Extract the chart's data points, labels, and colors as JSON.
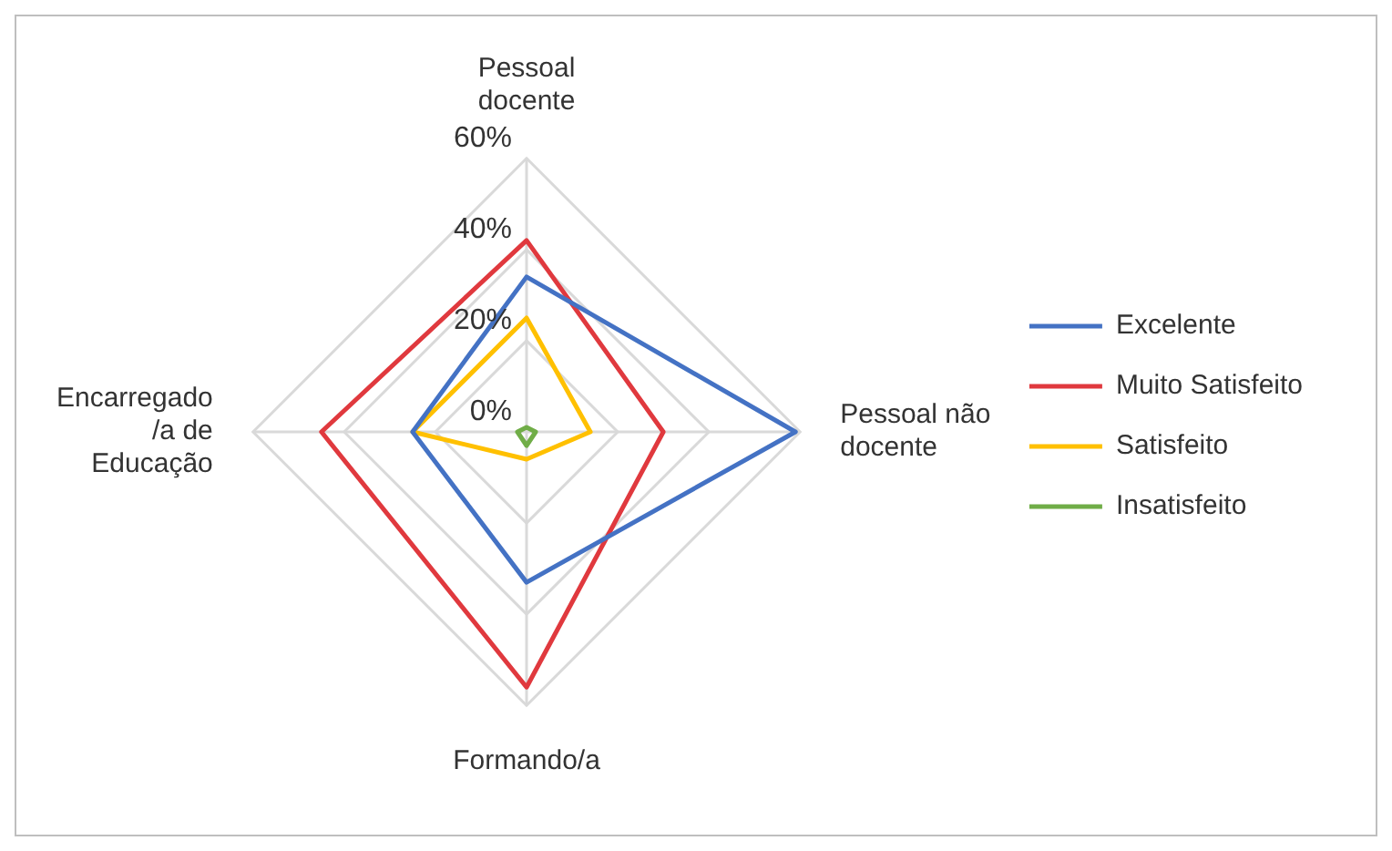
{
  "chart_data": {
    "type": "radar",
    "categories": [
      "Pessoal docente",
      "Pessoal não docente",
      "Formando/a",
      "Encarregado /a de Educação"
    ],
    "series": [
      {
        "name": "Excelente",
        "color": "#4472c4",
        "values": [
          34,
          59,
          33,
          25
        ]
      },
      {
        "name": "Muito Satisfeito",
        "color": "#e0393e",
        "values": [
          42,
          30,
          56,
          45
        ]
      },
      {
        "name": "Satisfeito",
        "color": "#ffc000",
        "values": [
          25,
          14,
          6,
          25
        ]
      },
      {
        "name": "Insatisfeito",
        "color": "#70ad47",
        "values": [
          1,
          2,
          3,
          2
        ]
      }
    ],
    "ylim": [
      0,
      60
    ],
    "yticks": [
      {
        "value": 0,
        "label": "0%"
      },
      {
        "value": 20,
        "label": "20%"
      },
      {
        "value": 40,
        "label": "40%"
      },
      {
        "value": 60,
        "label": "60%"
      }
    ],
    "grid": true,
    "legend": "right",
    "marker": "none",
    "line_style": "solid"
  }
}
